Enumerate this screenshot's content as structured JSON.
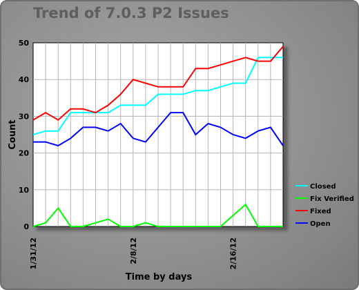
{
  "chart_data": {
    "type": "line",
    "title": "Trend of 7.0.3 P2 Issues",
    "xlabel": "Time by days",
    "ylabel": "Count",
    "ylim": [
      0,
      50
    ],
    "yticks": [
      "0",
      "10",
      "20",
      "30",
      "40",
      "50"
    ],
    "x": [
      "1/31/12",
      "2/1/12",
      "2/2/12",
      "2/3/12",
      "2/4/12",
      "2/5/12",
      "2/6/12",
      "2/7/12",
      "2/8/12",
      "2/9/12",
      "2/10/12",
      "2/11/12",
      "2/12/12",
      "2/13/12",
      "2/14/12",
      "2/15/12",
      "2/16/12",
      "2/17/12",
      "2/18/12",
      "2/19/12",
      "2/20/12"
    ],
    "x_tick_labels": [
      "1/31/12",
      "2/8/12",
      "2/16/12"
    ],
    "x_tick_indices": [
      0,
      8,
      16
    ],
    "grid": true,
    "legend_position": "right",
    "series": [
      {
        "name": "Closed",
        "color": "#00ffff",
        "values": [
          25,
          26,
          26,
          31,
          31,
          31,
          31,
          33,
          33,
          33,
          36,
          36,
          36,
          37,
          37,
          38,
          39,
          39,
          46,
          46,
          46
        ]
      },
      {
        "name": "Fix Verified",
        "color": "#00ff00",
        "values": [
          0,
          1,
          5,
          0,
          0,
          1,
          2,
          0,
          0,
          1,
          0,
          0,
          0,
          0,
          0,
          0,
          3,
          6,
          0,
          0,
          0
        ]
      },
      {
        "name": "Fixed",
        "color": "#ff0000",
        "values": [
          29,
          31,
          29,
          32,
          32,
          31,
          33,
          36,
          40,
          39,
          38,
          38,
          38,
          43,
          43,
          44,
          45,
          46,
          45,
          45,
          49
        ]
      },
      {
        "name": "Open",
        "color": "#0000ff",
        "values": [
          23,
          23,
          22,
          24,
          27,
          27,
          26,
          28,
          24,
          23,
          27,
          31,
          31,
          25,
          28,
          27,
          25,
          24,
          26,
          27,
          22
        ]
      }
    ]
  }
}
